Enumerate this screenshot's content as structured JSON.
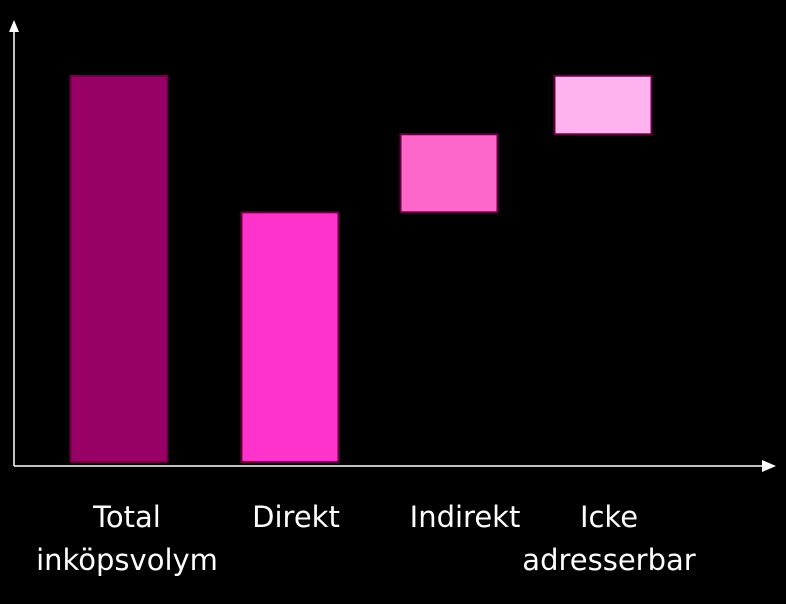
{
  "chart_data": {
    "type": "waterfall",
    "categories": [
      "Total\ninköpsvolym",
      "Direkt",
      "Indirekt",
      "Icke\nadresserbar"
    ],
    "values": [
      100,
      65,
      20,
      15
    ],
    "colors": [
      "#990066",
      "#ff33cc",
      "#ff66cc",
      "#ffb3ee"
    ],
    "ylim": [
      0,
      113
    ]
  }
}
